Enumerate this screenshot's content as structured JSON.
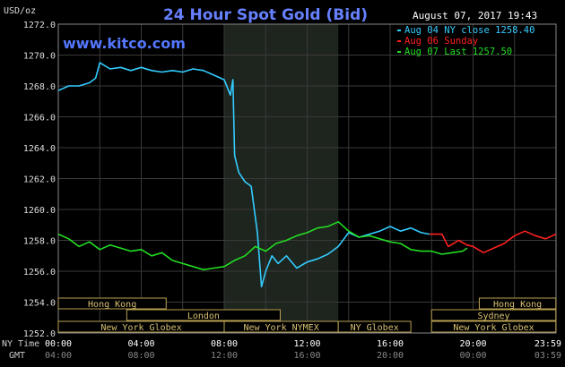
{
  "chart_data": {
    "type": "line",
    "title": "24 Hour Spot Gold (Bid)",
    "brand": "www.kitco.com",
    "timestamp": "August 07, 2017 19:43",
    "ylabel": "USD/oz",
    "ylim": [
      1252.0,
      1272.0
    ],
    "y_ticks": [
      "1252.0",
      "1254.0",
      "1256.0",
      "1258.0",
      "1260.0",
      "1262.0",
      "1264.0",
      "1266.0",
      "1268.0",
      "1270.0",
      "1272.0"
    ],
    "x_row1_label": "NY Time",
    "x_row2_label": "GMT",
    "x_ticks_ny": [
      "00:00",
      "04:00",
      "08:00",
      "12:00",
      "16:00",
      "20:00",
      "23:59"
    ],
    "x_ticks_gmt": [
      "04:00",
      "08:00",
      "12:00",
      "16:00",
      "20:00",
      "00:00",
      "03:59"
    ],
    "xlim_hours": [
      0,
      24
    ],
    "shaded_hours": [
      8.0,
      13.5
    ],
    "grid": true,
    "legend": [
      {
        "label": "Aug 04 NY close 1258.40",
        "color": "#33ccff"
      },
      {
        "label": "Aug 06 Sunday",
        "color": "#ff2020"
      },
      {
        "label": "Aug 07 Last 1257.50",
        "color": "#22dd22"
      }
    ],
    "series": [
      {
        "name": "Aug 04 NY close 1258.40",
        "color": "#33ccff",
        "points": [
          [
            0,
            1267.7
          ],
          [
            0.5,
            1268.0
          ],
          [
            1.0,
            1268.0
          ],
          [
            1.5,
            1268.2
          ],
          [
            1.8,
            1268.5
          ],
          [
            2.0,
            1269.5
          ],
          [
            2.5,
            1269.1
          ],
          [
            3.0,
            1269.2
          ],
          [
            3.5,
            1269.0
          ],
          [
            4.0,
            1269.2
          ],
          [
            4.5,
            1269.0
          ],
          [
            5.0,
            1268.9
          ],
          [
            5.5,
            1269.0
          ],
          [
            6.0,
            1268.9
          ],
          [
            6.5,
            1269.1
          ],
          [
            7.0,
            1269.0
          ],
          [
            7.5,
            1268.7
          ],
          [
            8.0,
            1268.4
          ],
          [
            8.3,
            1267.4
          ],
          [
            8.42,
            1268.4
          ],
          [
            8.5,
            1263.5
          ],
          [
            8.7,
            1262.4
          ],
          [
            9.0,
            1261.8
          ],
          [
            9.3,
            1261.5
          ],
          [
            9.6,
            1258.5
          ],
          [
            9.8,
            1255.0
          ],
          [
            10.0,
            1256.0
          ],
          [
            10.3,
            1257.0
          ],
          [
            10.6,
            1256.5
          ],
          [
            11.0,
            1257.0
          ],
          [
            11.5,
            1256.2
          ],
          [
            12.0,
            1256.6
          ],
          [
            12.5,
            1256.8
          ],
          [
            13.0,
            1257.1
          ],
          [
            13.5,
            1257.6
          ],
          [
            14.0,
            1258.5
          ],
          [
            14.5,
            1258.2
          ],
          [
            15.0,
            1258.4
          ],
          [
            15.5,
            1258.6
          ],
          [
            16.0,
            1258.9
          ],
          [
            16.5,
            1258.6
          ],
          [
            17.0,
            1258.8
          ],
          [
            17.5,
            1258.5
          ],
          [
            17.9,
            1258.4
          ]
        ]
      },
      {
        "name": "Aug 06 Sunday",
        "color": "#ff2020",
        "points": [
          [
            17.9,
            1258.4
          ],
          [
            18.5,
            1258.4
          ],
          [
            18.8,
            1257.6
          ],
          [
            19.3,
            1258.0
          ],
          [
            19.7,
            1257.7
          ],
          [
            20.0,
            1257.6
          ],
          [
            20.5,
            1257.2
          ],
          [
            21.0,
            1257.5
          ],
          [
            21.5,
            1257.8
          ],
          [
            22.0,
            1258.3
          ],
          [
            22.5,
            1258.6
          ],
          [
            23.0,
            1258.3
          ],
          [
            23.5,
            1258.1
          ],
          [
            23.99,
            1258.4
          ]
        ]
      },
      {
        "name": "Aug 07 Last 1257.50",
        "color": "#22dd22",
        "points": [
          [
            0,
            1258.4
          ],
          [
            0.5,
            1258.1
          ],
          [
            1.0,
            1257.6
          ],
          [
            1.5,
            1257.9
          ],
          [
            2.0,
            1257.4
          ],
          [
            2.5,
            1257.7
          ],
          [
            3.0,
            1257.5
          ],
          [
            3.5,
            1257.3
          ],
          [
            4.0,
            1257.4
          ],
          [
            4.5,
            1257.0
          ],
          [
            5.0,
            1257.2
          ],
          [
            5.5,
            1256.7
          ],
          [
            6.0,
            1256.5
          ],
          [
            6.5,
            1256.3
          ],
          [
            7.0,
            1256.1
          ],
          [
            7.5,
            1256.2
          ],
          [
            8.0,
            1256.3
          ],
          [
            8.5,
            1256.7
          ],
          [
            9.0,
            1257.0
          ],
          [
            9.5,
            1257.6
          ],
          [
            10.0,
            1257.3
          ],
          [
            10.5,
            1257.8
          ],
          [
            11.0,
            1258.0
          ],
          [
            11.5,
            1258.3
          ],
          [
            12.0,
            1258.5
          ],
          [
            12.5,
            1258.8
          ],
          [
            13.0,
            1258.9
          ],
          [
            13.5,
            1259.2
          ],
          [
            14.0,
            1258.6
          ],
          [
            14.5,
            1258.2
          ],
          [
            15.0,
            1258.3
          ],
          [
            15.5,
            1258.1
          ],
          [
            16.0,
            1257.9
          ],
          [
            16.5,
            1257.8
          ],
          [
            17.0,
            1257.4
          ],
          [
            17.5,
            1257.3
          ],
          [
            18.0,
            1257.3
          ],
          [
            18.5,
            1257.1
          ],
          [
            19.0,
            1257.2
          ],
          [
            19.5,
            1257.3
          ],
          [
            19.72,
            1257.5
          ]
        ]
      }
    ],
    "sessions": [
      {
        "label": "Hong Kong",
        "start": 0,
        "end": 5.2,
        "row": 0
      },
      {
        "label": "London",
        "start": 3.3,
        "end": 10.7,
        "row": 1
      },
      {
        "label": "New York Globex",
        "start": 0,
        "end": 8.0,
        "row": 2
      },
      {
        "label": "New York NYMEX",
        "start": 8.0,
        "end": 13.5,
        "row": 2
      },
      {
        "label": "NY Globex",
        "start": 13.5,
        "end": 17.0,
        "row": 2
      },
      {
        "label": "Hong Kong",
        "start": 20.3,
        "end": 23.99,
        "row": 0
      },
      {
        "label": "Sydney",
        "start": 18.0,
        "end": 23.99,
        "row": 1
      },
      {
        "label": "New York Globex",
        "start": 18.0,
        "end": 23.99,
        "row": 2
      }
    ]
  }
}
